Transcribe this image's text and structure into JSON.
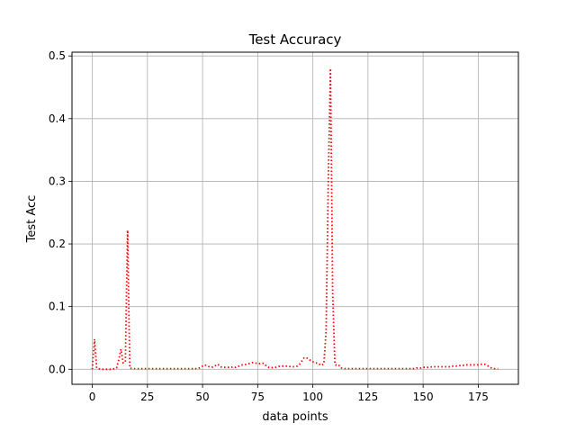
{
  "chart_data": {
    "type": "line",
    "title": "Test Accuracy",
    "xlabel": "data points",
    "ylabel": "Test Acc",
    "xlim": [
      -9.2,
      193.2
    ],
    "ylim": [
      -0.024,
      0.506
    ],
    "xticks": [
      0,
      25,
      50,
      75,
      100,
      125,
      150,
      175
    ],
    "yticks": [
      0.0,
      0.1,
      0.2,
      0.3,
      0.4,
      0.5
    ],
    "ytick_labels": [
      "0.0",
      "0.1",
      "0.2",
      "0.3",
      "0.4",
      "0.5"
    ],
    "grid": true,
    "series": [
      {
        "color": "#ff0000",
        "linestyle": "dotted",
        "x": [
          0,
          1,
          2,
          3,
          4,
          5,
          6,
          7,
          8,
          9,
          10,
          11,
          12,
          13,
          14,
          15,
          16,
          17,
          18,
          19,
          20,
          21,
          22,
          23,
          24,
          25,
          26,
          27,
          28,
          29,
          30,
          31,
          32,
          33,
          34,
          35,
          36,
          37,
          38,
          39,
          40,
          41,
          42,
          43,
          44,
          45,
          46,
          47,
          48,
          49,
          50,
          51,
          52,
          53,
          54,
          55,
          56,
          57,
          58,
          59,
          60,
          61,
          62,
          63,
          64,
          65,
          66,
          67,
          68,
          69,
          70,
          71,
          72,
          73,
          74,
          75,
          76,
          77,
          78,
          79,
          80,
          81,
          82,
          83,
          84,
          85,
          86,
          87,
          88,
          89,
          90,
          91,
          92,
          93,
          94,
          95,
          96,
          97,
          98,
          99,
          100,
          101,
          102,
          103,
          104,
          105,
          106,
          107,
          108,
          109,
          110,
          111,
          112,
          113,
          114,
          115,
          116,
          117,
          118,
          119,
          120,
          121,
          122,
          123,
          124,
          125,
          126,
          127,
          128,
          129,
          130,
          131,
          132,
          133,
          134,
          135,
          136,
          137,
          138,
          139,
          140,
          141,
          142,
          143,
          144,
          145,
          146,
          147,
          148,
          149,
          150,
          151,
          152,
          153,
          154,
          155,
          156,
          157,
          158,
          159,
          160,
          161,
          162,
          163,
          164,
          165,
          166,
          167,
          168,
          169,
          170,
          171,
          172,
          173,
          174,
          175,
          176,
          177,
          178,
          179,
          180,
          181,
          182,
          183,
          184
        ],
        "y": [
          0.0,
          0.048,
          0.002,
          0.001,
          0.0,
          0.0,
          0.0,
          0.0,
          0.0,
          0.0,
          0.001,
          0.002,
          0.015,
          0.032,
          0.01,
          0.012,
          0.222,
          0.002,
          0.001,
          0.001,
          0.001,
          0.001,
          0.001,
          0.001,
          0.001,
          0.001,
          0.001,
          0.001,
          0.001,
          0.001,
          0.001,
          0.001,
          0.001,
          0.001,
          0.001,
          0.001,
          0.001,
          0.001,
          0.001,
          0.001,
          0.001,
          0.001,
          0.001,
          0.001,
          0.001,
          0.001,
          0.001,
          0.001,
          0.001,
          0.003,
          0.005,
          0.007,
          0.005,
          0.004,
          0.003,
          0.004,
          0.006,
          0.008,
          0.004,
          0.003,
          0.003,
          0.003,
          0.003,
          0.003,
          0.004,
          0.003,
          0.004,
          0.006,
          0.007,
          0.007,
          0.008,
          0.009,
          0.01,
          0.011,
          0.01,
          0.009,
          0.009,
          0.01,
          0.009,
          0.005,
          0.003,
          0.002,
          0.003,
          0.003,
          0.004,
          0.005,
          0.005,
          0.005,
          0.005,
          0.005,
          0.004,
          0.004,
          0.004,
          0.005,
          0.008,
          0.013,
          0.018,
          0.019,
          0.016,
          0.014,
          0.012,
          0.01,
          0.01,
          0.008,
          0.006,
          0.009,
          0.06,
          0.3,
          0.48,
          0.12,
          0.008,
          0.005,
          0.006,
          0.002,
          0.001,
          0.001,
          0.001,
          0.001,
          0.001,
          0.001,
          0.001,
          0.001,
          0.001,
          0.001,
          0.001,
          0.001,
          0.001,
          0.001,
          0.001,
          0.001,
          0.001,
          0.001,
          0.001,
          0.001,
          0.001,
          0.001,
          0.001,
          0.001,
          0.001,
          0.001,
          0.001,
          0.001,
          0.001,
          0.001,
          0.001,
          0.001,
          0.001,
          0.002,
          0.002,
          0.002,
          0.003,
          0.003,
          0.003,
          0.003,
          0.004,
          0.004,
          0.004,
          0.004,
          0.004,
          0.004,
          0.004,
          0.004,
          0.004,
          0.005,
          0.005,
          0.005,
          0.006,
          0.006,
          0.006,
          0.007,
          0.007,
          0.007,
          0.007,
          0.007,
          0.007,
          0.007,
          0.008,
          0.008,
          0.008,
          0.006,
          0.004,
          0.002,
          0.001,
          0.001,
          0.001
        ]
      }
    ],
    "colors": {
      "line": "#ff0000",
      "grid": "#b0b0b0",
      "axes": "#000000",
      "background": "#ffffff"
    }
  }
}
